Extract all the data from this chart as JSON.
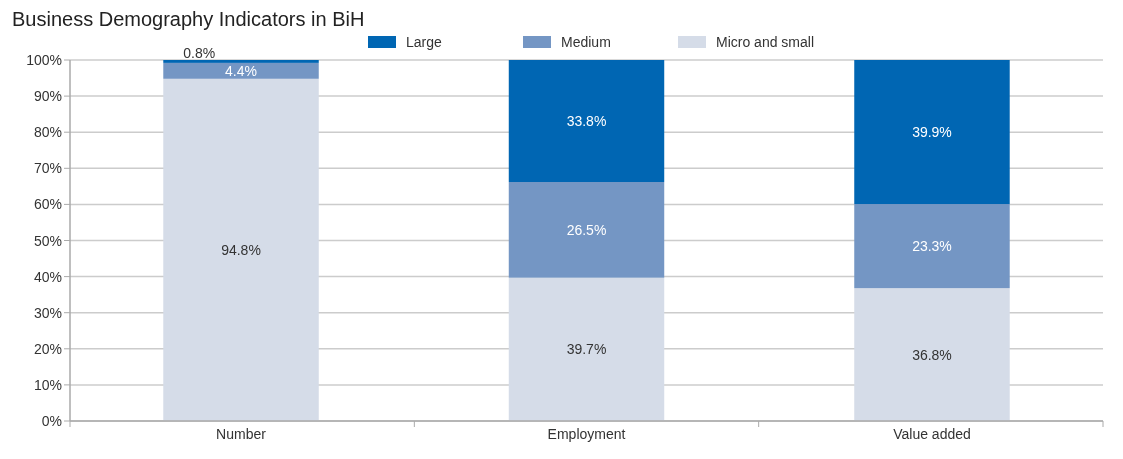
{
  "chart_data": {
    "type": "bar",
    "title": "Business Demography Indicators in BiH",
    "categories": [
      "Number",
      "Employment",
      "Value added"
    ],
    "stacked": true,
    "series": [
      {
        "name": "Micro and small",
        "color": "#d5dce8",
        "values": [
          94.8,
          39.7,
          36.8
        ],
        "value_labels": [
          "94.8%",
          "39.7%",
          "36.8%"
        ]
      },
      {
        "name": "Medium",
        "color": "#7496c4",
        "values": [
          4.4,
          26.5,
          23.3
        ],
        "value_labels": [
          "4.4%",
          "26.5%",
          "23.3%"
        ]
      },
      {
        "name": "Large",
        "color": "#0066b3",
        "values": [
          0.8,
          33.8,
          39.9
        ],
        "value_labels": [
          "0.8%",
          "33.8%",
          "39.9%"
        ]
      }
    ],
    "ylim": [
      0,
      100
    ],
    "yticks": [
      {
        "value": 0,
        "label": "0%"
      },
      {
        "value": 10,
        "label": "10%"
      },
      {
        "value": 20,
        "label": "20%"
      },
      {
        "value": 30,
        "label": "30%"
      },
      {
        "value": 40,
        "label": "40%"
      },
      {
        "value": 50,
        "label": "50%"
      },
      {
        "value": 60,
        "label": "60%"
      },
      {
        "value": 70,
        "label": "70%"
      },
      {
        "value": 80,
        "label": "80%"
      },
      {
        "value": 90,
        "label": "90%"
      },
      {
        "value": 100,
        "label": "100%"
      }
    ],
    "grid": "y",
    "legend": "top"
  }
}
